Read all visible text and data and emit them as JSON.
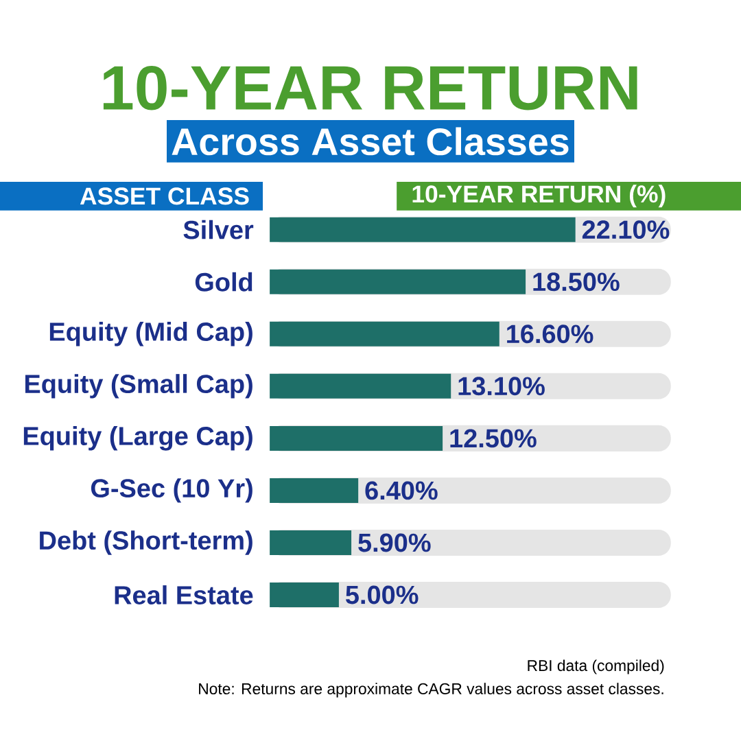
{
  "chart_data": {
    "type": "bar",
    "orientation": "horizontal",
    "title": "10-YEAR RETURN",
    "subtitle": "Across Asset Classes",
    "ylabel": "ASSET CLASS",
    "xlabel": "10-YEAR RETURN (%)",
    "categories": [
      "Silver",
      "Gold",
      "Equity (Mid Cap)",
      "Equity (Small Cap)",
      "Equity (Large Cap)",
      "G-Sec (10 Yr)",
      "Debt (Short-term)",
      "Real Estate"
    ],
    "values": [
      22.1,
      18.5,
      16.6,
      13.1,
      12.5,
      6.4,
      5.9,
      5.0
    ],
    "value_labels": [
      "22.10%",
      "18.50%",
      "16.60%",
      "13.10%",
      "12.50%",
      "6.40%",
      "5.90%",
      "5.00%"
    ],
    "color": "#1e6f68",
    "xlim": [
      0,
      29
    ],
    "tick_labels": "y",
    "annotations": [
      "RBI data (compiled)",
      "Note: Returns are approximate CAGR values across asset classes."
    ]
  }
}
